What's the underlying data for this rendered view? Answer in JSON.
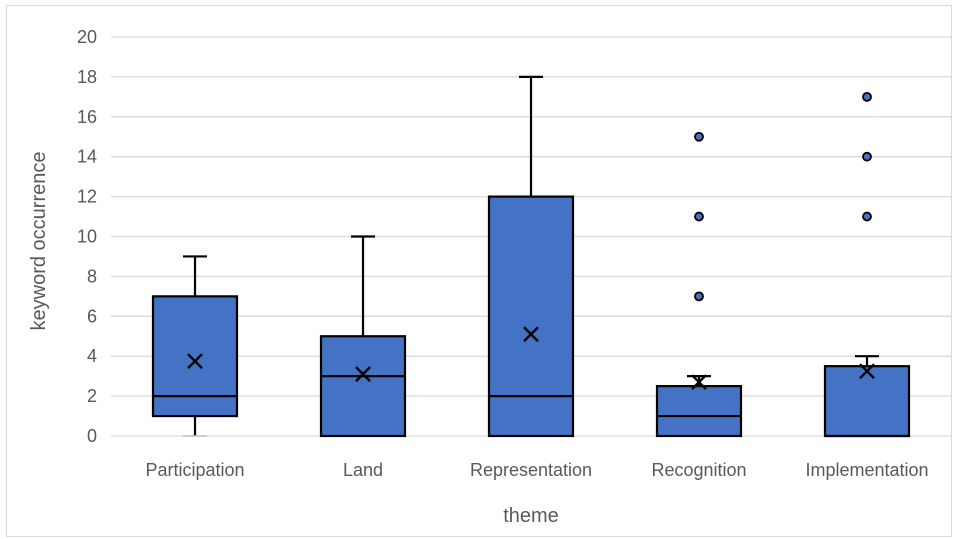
{
  "chart_data": {
    "type": "box",
    "title": "",
    "xlabel": "theme",
    "ylabel": "keyword occurrence",
    "ylim": [
      0,
      20
    ],
    "yticks": [
      0,
      2,
      4,
      6,
      8,
      10,
      12,
      14,
      16,
      18,
      20
    ],
    "grid": true,
    "legend": "none",
    "colors": {
      "box_fill": "#4472C4",
      "stroke": "#000000",
      "grid": "#d9d9d9"
    },
    "categories": [
      "Participation",
      "Land",
      "Representation",
      "Recognition",
      "Implementation"
    ],
    "boxes": [
      {
        "category": "Participation",
        "min": 0,
        "q1": 1,
        "median": 2,
        "q3": 7,
        "max": 9,
        "mean": 3.75,
        "outliers": []
      },
      {
        "category": "Land",
        "min": 0,
        "q1": 0,
        "median": 3,
        "q3": 5,
        "max": 10,
        "mean": 3.1,
        "outliers": []
      },
      {
        "category": "Representation",
        "min": 0,
        "q1": 0,
        "median": 2,
        "q3": 12,
        "max": 18,
        "mean": 5.1,
        "outliers": []
      },
      {
        "category": "Recognition",
        "min": 0,
        "q1": 0,
        "median": 1,
        "q3": 2.5,
        "max": 3,
        "mean": 2.7,
        "outliers": [
          7,
          11,
          15
        ]
      },
      {
        "category": "Implementation",
        "min": 0,
        "q1": 0,
        "median": 0,
        "q3": 3.5,
        "max": 4,
        "mean": 3.25,
        "outliers": [
          11,
          14,
          17
        ]
      }
    ]
  }
}
